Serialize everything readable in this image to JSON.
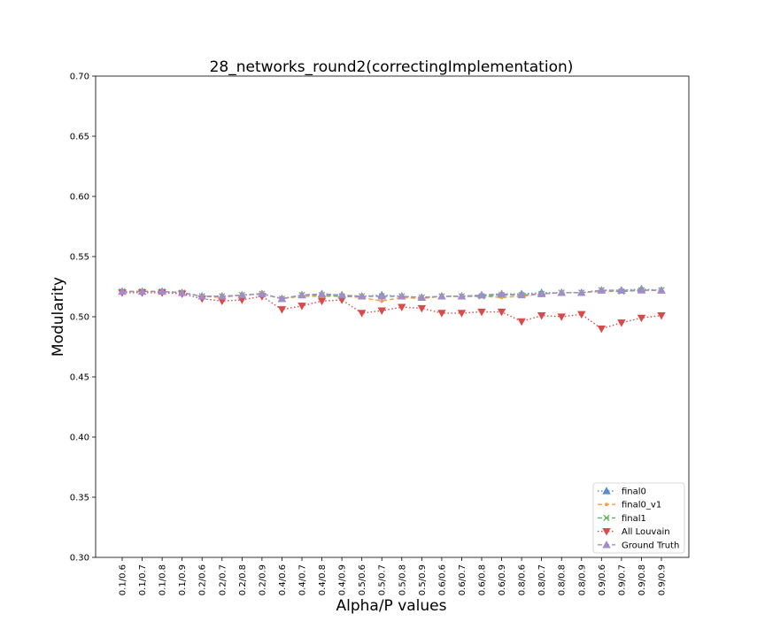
{
  "chart_data": {
    "type": "line",
    "title": "28_networks_round2(correctingImplementation)",
    "xlabel": "Alpha/P values",
    "ylabel": "Modularity",
    "ylim": [
      0.3,
      0.7
    ],
    "yticks": [
      0.3,
      0.35,
      0.4,
      0.45,
      0.5,
      0.55,
      0.6,
      0.65,
      0.7
    ],
    "ytick_labels": [
      "0.30",
      "0.35",
      "0.40",
      "0.45",
      "0.50",
      "0.55",
      "0.60",
      "0.65",
      "0.70"
    ],
    "categories": [
      "0.1/0.6",
      "0.1/0.7",
      "0.1/0.8",
      "0.1/0.9",
      "0.2/0.6",
      "0.2/0.7",
      "0.2/0.8",
      "0.2/0.9",
      "0.4/0.6",
      "0.4/0.7",
      "0.4/0.8",
      "0.4/0.9",
      "0.5/0.6",
      "0.5/0.7",
      "0.5/0.8",
      "0.5/0.9",
      "0.6/0.6",
      "0.6/0.7",
      "0.6/0.8",
      "0.6/0.9",
      "0.8/0.6",
      "0.8/0.7",
      "0.8/0.8",
      "0.8/0.9",
      "0.9/0.6",
      "0.9/0.7",
      "0.9/0.8",
      "0.9/0.9"
    ],
    "grid": false,
    "legend_position": "bottom-right",
    "series": [
      {
        "name": "final0",
        "color": "#5b8ec4",
        "line_style": "dotted",
        "marker": "triangle-up",
        "values": [
          0.521,
          0.521,
          0.521,
          0.52,
          0.517,
          0.517,
          0.518,
          0.519,
          0.515,
          0.518,
          0.519,
          0.518,
          0.517,
          0.518,
          0.517,
          0.516,
          0.517,
          0.517,
          0.518,
          0.519,
          0.519,
          0.52,
          0.52,
          0.52,
          0.522,
          0.522,
          0.523,
          0.522
        ]
      },
      {
        "name": "final0_v1",
        "color": "#f5a04a",
        "line_style": "dashed",
        "marker": "point",
        "values": [
          0.521,
          0.521,
          0.521,
          0.52,
          0.517,
          0.516,
          0.518,
          0.519,
          0.515,
          0.517,
          0.517,
          0.517,
          0.516,
          0.513,
          0.516,
          0.515,
          0.517,
          0.517,
          0.517,
          0.516,
          0.517,
          0.519,
          0.52,
          0.52,
          0.521,
          0.521,
          0.522,
          0.522
        ]
      },
      {
        "name": "final1",
        "color": "#5db55d",
        "line_style": "dashed",
        "marker": "x",
        "values": [
          0.521,
          0.521,
          0.521,
          0.52,
          0.517,
          0.517,
          0.518,
          0.519,
          0.515,
          0.518,
          0.518,
          0.517,
          0.517,
          0.517,
          0.517,
          0.516,
          0.517,
          0.517,
          0.517,
          0.518,
          0.518,
          0.519,
          0.52,
          0.52,
          0.522,
          0.521,
          0.522,
          0.522
        ]
      },
      {
        "name": "All Louvain",
        "color": "#d94b4b",
        "line_style": "dotted",
        "marker": "triangle-down",
        "values": [
          0.52,
          0.52,
          0.52,
          0.519,
          0.515,
          0.513,
          0.514,
          0.517,
          0.506,
          0.509,
          0.513,
          0.514,
          0.503,
          0.505,
          0.508,
          0.507,
          0.503,
          0.503,
          0.504,
          0.504,
          0.496,
          0.501,
          0.5,
          0.502,
          0.49,
          0.495,
          0.499,
          0.501
        ]
      },
      {
        "name": "Ground Truth",
        "color": "#a48bc9",
        "line_style": "dashed",
        "marker": "triangle-up",
        "values": [
          0.521,
          0.521,
          0.521,
          0.52,
          0.517,
          0.517,
          0.518,
          0.519,
          0.515,
          0.518,
          0.519,
          0.518,
          0.517,
          0.517,
          0.517,
          0.516,
          0.517,
          0.517,
          0.518,
          0.519,
          0.518,
          0.519,
          0.52,
          0.52,
          0.522,
          0.522,
          0.522,
          0.522
        ]
      }
    ]
  }
}
